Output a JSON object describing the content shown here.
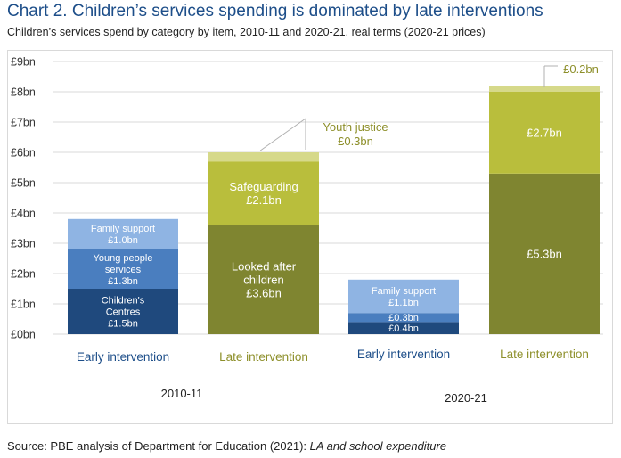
{
  "title": "Chart 2. Children’s services spending is dominated by late interventions",
  "subtitle": "Children’s services spend by category by item, 2010-11 and 2020-21, real terms (2020-21 prices)",
  "source_prefix": "Source: PBE analysis of Department for Education (2021): ",
  "source_italic": "LA and school expenditure",
  "colors": {
    "early_dark": "#1f497d",
    "early_mid": "#4a7ebf",
    "early_light": "#8fb4e3",
    "late_dark": "#7f8530",
    "late_mid": "#b9be3c",
    "late_light": "#d6d98a",
    "early_text": "#1d4e89",
    "late_text": "#8d8f2a",
    "grid": "#d9d9d9",
    "axis_text": "#333333"
  },
  "chart_data": {
    "type": "bar",
    "stacked": true,
    "ylim": [
      0,
      9
    ],
    "y_ticks": [
      "£0bn",
      "£1bn",
      "£2bn",
      "£3bn",
      "£4bn",
      "£5bn",
      "£6bn",
      "£7bn",
      "£8bn",
      "£9bn"
    ],
    "grid": true,
    "groups": [
      {
        "year": "2010-11",
        "bars": [
          {
            "category": "Early intervention",
            "segments": [
              {
                "name": "Children's Centres",
                "value": 1.5,
                "label": [
                  "Children's",
                  "Centres",
                  "£1.5bn"
                ],
                "shade": "dark"
              },
              {
                "name": "Young people services",
                "value": 1.3,
                "label": [
                  "Young people",
                  "services",
                  "£1.3bn"
                ],
                "shade": "mid"
              },
              {
                "name": "Family support",
                "value": 1.0,
                "label": [
                  "Family support",
                  "£1.0bn"
                ],
                "shade": "light"
              }
            ]
          },
          {
            "category": "Late intervention",
            "segments": [
              {
                "name": "Looked after children",
                "value": 3.6,
                "label": [
                  "Looked after",
                  "children",
                  "£3.6bn"
                ],
                "shade": "dark"
              },
              {
                "name": "Safeguarding",
                "value": 2.1,
                "label": [
                  "Safeguarding",
                  "£2.1bn"
                ],
                "shade": "mid"
              },
              {
                "name": "Youth justice",
                "value": 0.3,
                "label": [],
                "callout": [
                  "Youth justice",
                  "£0.3bn"
                ],
                "shade": "light"
              }
            ]
          }
        ]
      },
      {
        "year": "2020-21",
        "bars": [
          {
            "category": "Early intervention",
            "segments": [
              {
                "name": "Children's Centres",
                "value": 0.4,
                "label": [
                  "£0.4bn"
                ],
                "shade": "dark"
              },
              {
                "name": "Young people services",
                "value": 0.3,
                "label": [
                  "£0.3bn"
                ],
                "shade": "mid"
              },
              {
                "name": "Family support",
                "value": 1.1,
                "label": [
                  "Family support",
                  "£1.1bn"
                ],
                "shade": "light"
              }
            ]
          },
          {
            "category": "Late intervention",
            "segments": [
              {
                "name": "Looked after children",
                "value": 5.3,
                "label": [
                  "£5.3bn"
                ],
                "shade": "dark"
              },
              {
                "name": "Safeguarding",
                "value": 2.7,
                "label": [
                  "£2.7bn"
                ],
                "shade": "mid"
              },
              {
                "name": "Youth justice",
                "value": 0.2,
                "label": [],
                "callout": [
                  "£0.2bn"
                ],
                "shade": "light"
              }
            ]
          }
        ]
      }
    ]
  }
}
